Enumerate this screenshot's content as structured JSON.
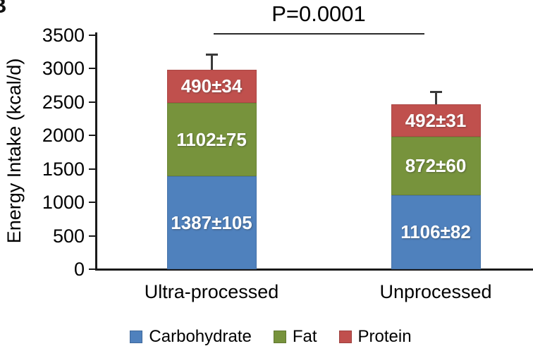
{
  "panel_label": "B",
  "chart_data": {
    "type": "bar",
    "stacked": true,
    "title": "",
    "xlabel": "",
    "ylabel": "Energy Intake (kcal/d)",
    "ylim": [
      0,
      3500
    ],
    "ytick_interval": 500,
    "yticks": [
      0,
      500,
      1000,
      1500,
      2000,
      2500,
      3000,
      3500
    ],
    "grid": false,
    "categories": [
      "Ultra-processed",
      "Unprocessed"
    ],
    "series": [
      {
        "name": "Carbohydrate",
        "color": "#4F81BD",
        "values": [
          1387,
          1106
        ],
        "labels": [
          "1387±105",
          "1106±82"
        ]
      },
      {
        "name": "Fat",
        "color": "#77933C",
        "values": [
          1102,
          872
        ],
        "labels": [
          "1102±75",
          "872±60"
        ]
      },
      {
        "name": "Protein",
        "color": "#C0504D",
        "values": [
          490,
          492
        ],
        "labels": [
          "490±34",
          "492±31"
        ]
      }
    ],
    "totals": [
      2979,
      2470
    ],
    "error_whiskers": [
      230,
      180
    ],
    "legend_position": "bottom",
    "significance": {
      "label": "P=0.0001",
      "between": [
        "Ultra-processed",
        "Unprocessed"
      ]
    }
  }
}
